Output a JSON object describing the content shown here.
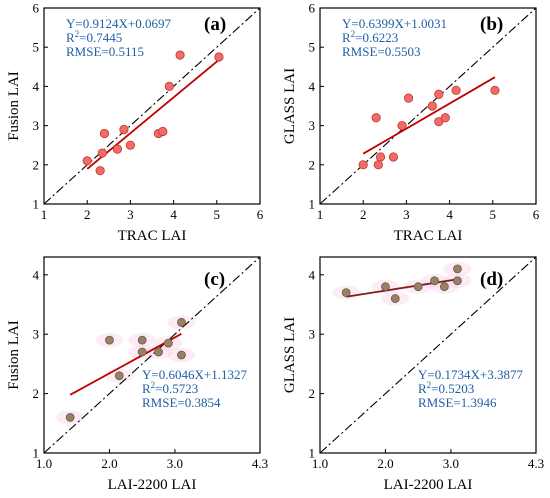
{
  "chart_data": [
    {
      "type": "scatter",
      "panel_label": "(a)",
      "xlabel": "TRAC LAI",
      "ylabel": "Fusion LAI",
      "xlim": [
        1,
        6
      ],
      "ylim": [
        1,
        6
      ],
      "xticks": [
        "1",
        "2",
        "3",
        "4",
        "5",
        "6"
      ],
      "yticks": [
        "1",
        "2",
        "3",
        "4",
        "5",
        "6"
      ],
      "points": [
        {
          "x": 2.0,
          "y": 2.1
        },
        {
          "x": 2.3,
          "y": 1.85
        },
        {
          "x": 2.35,
          "y": 2.3
        },
        {
          "x": 2.4,
          "y": 2.8
        },
        {
          "x": 2.7,
          "y": 2.4
        },
        {
          "x": 2.85,
          "y": 2.9
        },
        {
          "x": 3.0,
          "y": 2.5
        },
        {
          "x": 3.65,
          "y": 2.8
        },
        {
          "x": 3.75,
          "y": 2.85
        },
        {
          "x": 3.9,
          "y": 4.0
        },
        {
          "x": 4.15,
          "y": 4.8
        },
        {
          "x": 5.05,
          "y": 4.75
        }
      ],
      "fit": {
        "slope": 0.9124,
        "intercept": 0.0697,
        "x_range": [
          2.0,
          5.05
        ]
      },
      "equation": "Y=0.9124X+0.0697",
      "r2_prefix": "R",
      "r2_sup": "2",
      "r2_value": "=0.7445",
      "rmse": "RMSE=0.5115",
      "point_color": "#f26b6b",
      "fit_color": "#c00000",
      "text_color": "#1f5fa6"
    },
    {
      "type": "scatter",
      "panel_label": "(b)",
      "xlabel": "TRAC LAI",
      "ylabel": "GLASS LAI",
      "xlim": [
        1,
        6
      ],
      "ylim": [
        1,
        6
      ],
      "xticks": [
        "1",
        "2",
        "3",
        "4",
        "5",
        "6"
      ],
      "yticks": [
        "1",
        "2",
        "3",
        "4",
        "5",
        "6"
      ],
      "points": [
        {
          "x": 2.0,
          "y": 2.0
        },
        {
          "x": 2.3,
          "y": 3.2
        },
        {
          "x": 2.35,
          "y": 2.0
        },
        {
          "x": 2.4,
          "y": 2.2
        },
        {
          "x": 2.7,
          "y": 2.2
        },
        {
          "x": 2.9,
          "y": 3.0
        },
        {
          "x": 3.05,
          "y": 3.7
        },
        {
          "x": 3.6,
          "y": 3.5
        },
        {
          "x": 3.75,
          "y": 3.1
        },
        {
          "x": 3.75,
          "y": 3.8
        },
        {
          "x": 3.9,
          "y": 3.2
        },
        {
          "x": 4.15,
          "y": 3.9
        },
        {
          "x": 5.05,
          "y": 3.9
        }
      ],
      "fit": {
        "slope": 0.6399,
        "intercept": 1.0031,
        "x_range": [
          2.0,
          5.05
        ]
      },
      "equation": "Y=0.6399X+1.0031",
      "r2_prefix": "R",
      "r2_sup": "2",
      "r2_value": "=0.6223",
      "rmse": "RMSE=0.5503",
      "point_color": "#f26b6b",
      "fit_color": "#c00000",
      "text_color": "#1f5fa6"
    },
    {
      "type": "scatter",
      "panel_label": "(c)",
      "xlabel": "LAI-2200 LAI",
      "ylabel": "Fusion LAI",
      "xlim": [
        1.0,
        4.3
      ],
      "ylim": [
        1,
        4.3
      ],
      "xticks": [
        "1.0",
        "2.0",
        "3.0",
        "4.3"
      ],
      "xtick_values": [
        1.0,
        2.0,
        3.0,
        4.3
      ],
      "yticks": [
        "1",
        "2",
        "3",
        "4"
      ],
      "ytick_values": [
        1,
        2,
        3,
        4
      ],
      "points": [
        {
          "x": 1.4,
          "y": 1.6
        },
        {
          "x": 2.0,
          "y": 2.9
        },
        {
          "x": 2.15,
          "y": 2.3
        },
        {
          "x": 2.5,
          "y": 2.7
        },
        {
          "x": 2.5,
          "y": 2.9
        },
        {
          "x": 2.75,
          "y": 2.7
        },
        {
          "x": 2.9,
          "y": 2.85
        },
        {
          "x": 3.1,
          "y": 2.65
        },
        {
          "x": 3.1,
          "y": 3.2
        }
      ],
      "fit": {
        "slope": 0.6046,
        "intercept": 1.1327,
        "x_range": [
          1.4,
          3.1
        ]
      },
      "equation": "Y=0.6046X+1.1327",
      "r2_prefix": "R",
      "r2_sup": "2",
      "r2_value": "=0.5723",
      "rmse": "RMSE=0.3854",
      "point_color": "#9a8062",
      "fit_color": "#c00000",
      "text_color": "#1f5fa6"
    },
    {
      "type": "scatter",
      "panel_label": "(d)",
      "xlabel": "LAI-2200 LAI",
      "ylabel": "GLASS LAI",
      "xlim": [
        1.0,
        4.3
      ],
      "ylim": [
        1,
        4.3
      ],
      "xticks": [
        "1.0",
        "2.0",
        "3.0",
        "4.3"
      ],
      "xtick_values": [
        1.0,
        2.0,
        3.0,
        4.3
      ],
      "yticks": [
        "1",
        "2",
        "3",
        "4"
      ],
      "ytick_values": [
        1,
        2,
        3,
        4
      ],
      "points": [
        {
          "x": 1.4,
          "y": 3.7
        },
        {
          "x": 2.0,
          "y": 3.8
        },
        {
          "x": 2.15,
          "y": 3.6
        },
        {
          "x": 2.5,
          "y": 3.8
        },
        {
          "x": 2.75,
          "y": 3.9
        },
        {
          "x": 2.9,
          "y": 3.8
        },
        {
          "x": 3.1,
          "y": 3.9
        },
        {
          "x": 3.1,
          "y": 4.1
        }
      ],
      "fit": {
        "slope": 0.1734,
        "intercept": 3.3877,
        "x_range": [
          1.4,
          3.1
        ]
      },
      "equation": "Y=0.1734X+3.3877",
      "r2_prefix": "R",
      "r2_sup": "2",
      "r2_value": "=0.5203",
      "rmse": "RMSE=1.3946",
      "point_color": "#9a8062",
      "fit_color": "#7b1e1e",
      "text_color": "#1f5fa6"
    }
  ]
}
